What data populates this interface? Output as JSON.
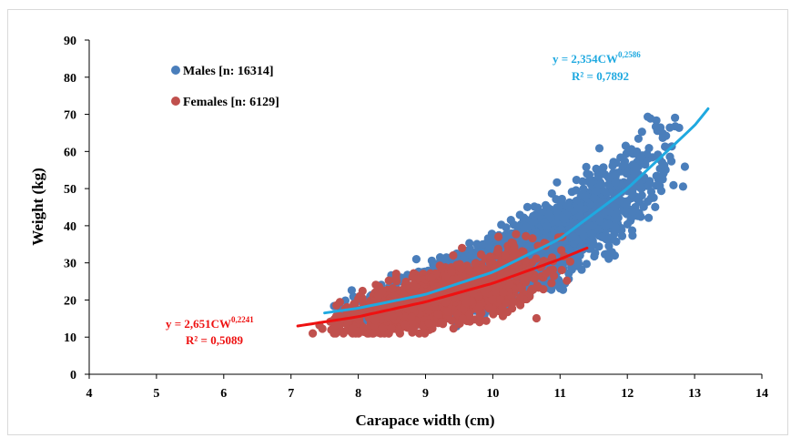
{
  "chart_data": {
    "type": "scatter",
    "xlabel": "Carapace width (cm)",
    "ylabel": "Weight  (kg)",
    "xlim": [
      4,
      14
    ],
    "ylim": [
      0,
      90
    ],
    "xticks": [
      4,
      5,
      6,
      7,
      8,
      9,
      10,
      11,
      12,
      13,
      14
    ],
    "yticks": [
      0,
      10,
      20,
      30,
      40,
      50,
      60,
      70,
      80,
      90
    ],
    "grid": false,
    "legend_position": "top-left",
    "series": [
      {
        "name": "Males [n: 16314]",
        "color": "#4a7ebb",
        "x_range": [
          7.5,
          13.2
        ],
        "trend": {
          "equation_text": "y = 2,354CW",
          "exponent_text": "0,2586",
          "r2_text": "R² = 0,7892",
          "color": "#1fa9e0",
          "points": [
            [
              7.5,
              16.5
            ],
            [
              8,
              17.8
            ],
            [
              9,
              21.5
            ],
            [
              10,
              27.5
            ],
            [
              11,
              36.5
            ],
            [
              12,
              50
            ],
            [
              13,
              67
            ],
            [
              13.2,
              71.5
            ]
          ]
        }
      },
      {
        "name": "Females [n: 6129]",
        "color": "#c0504d",
        "x_range": [
          7.1,
          11.4
        ],
        "trend": {
          "equation_text": "y = 2,651CW",
          "exponent_text": "0,2241",
          "r2_text": "R² = 0,5089",
          "color": "#ee1111",
          "points": [
            [
              7.1,
              13
            ],
            [
              8,
              15.5
            ],
            [
              9,
              19.5
            ],
            [
              10,
              24.5
            ],
            [
              11,
              31
            ],
            [
              11.4,
              34
            ]
          ]
        }
      }
    ]
  }
}
